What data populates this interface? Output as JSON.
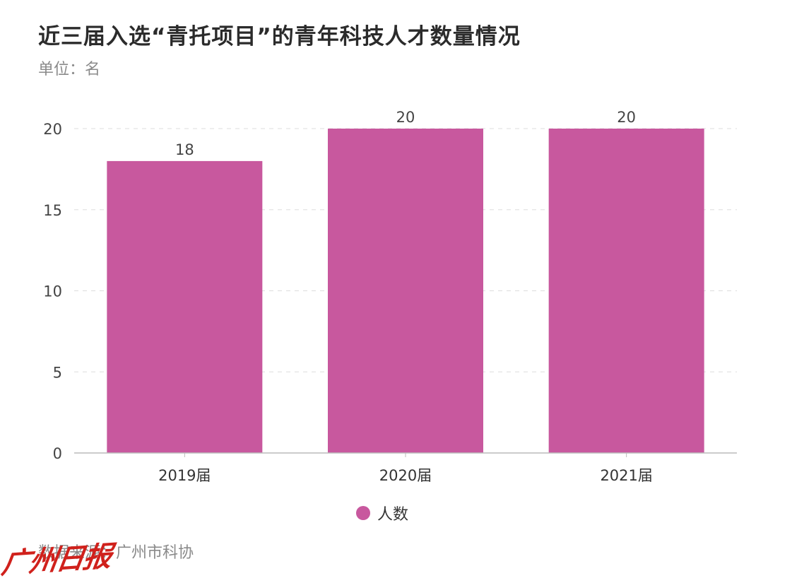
{
  "header": {
    "title": "近三届入选“青托项目”的青年科技人才数量情况",
    "unit": "单位：名"
  },
  "footer": {
    "source": "数据来源：广州市科协",
    "logo_text": "广州日报"
  },
  "colors": {
    "bar": "#c8589e",
    "grid": "#dddddd",
    "axis": "#bbbbbb"
  },
  "chart_data": {
    "type": "bar",
    "categories": [
      "2019届",
      "2020届",
      "2021届"
    ],
    "series": [
      {
        "name": "人数",
        "values": [
          18,
          20,
          20
        ]
      }
    ],
    "ylim": [
      0,
      20
    ],
    "yticks": [
      0,
      5,
      10,
      15,
      20
    ],
    "data_labels": [
      "18",
      "20",
      "20"
    ],
    "grid": true,
    "legend_position": "bottom-center"
  }
}
